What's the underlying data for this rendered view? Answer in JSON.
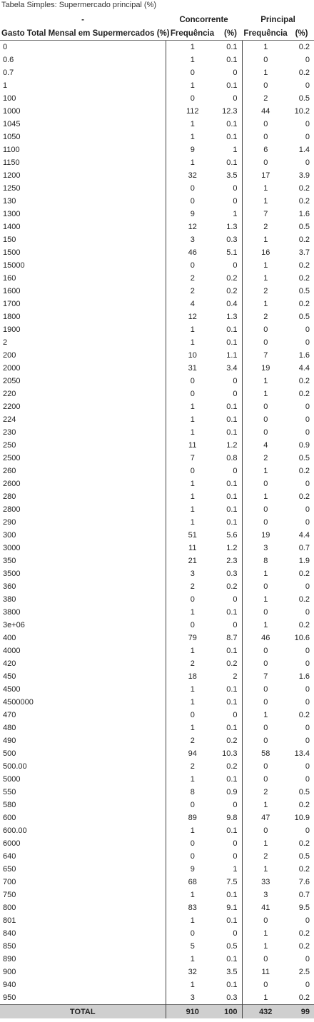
{
  "caption": "Tabela Simples: Supermercado principal (%)",
  "header": {
    "corner": "-",
    "group_concorrente": "Concorrente",
    "group_principal": "Principal",
    "row_label": "Gasto Total Mensal em Supermercados (%)",
    "freq1": "Frequência",
    "pct1": "(%)",
    "freq2": "Frequência",
    "pct2": "(%)"
  },
  "rows": [
    [
      "0",
      "1",
      "0.1",
      "1",
      "0.2"
    ],
    [
      "0.6",
      "1",
      "0.1",
      "0",
      "0"
    ],
    [
      "0.7",
      "0",
      "0",
      "1",
      "0.2"
    ],
    [
      "1",
      "1",
      "0.1",
      "0",
      "0"
    ],
    [
      "100",
      "0",
      "0",
      "2",
      "0.5"
    ],
    [
      "1000",
      "112",
      "12.3",
      "44",
      "10.2"
    ],
    [
      "1045",
      "1",
      "0.1",
      "0",
      "0"
    ],
    [
      "1050",
      "1",
      "0.1",
      "0",
      "0"
    ],
    [
      "1100",
      "9",
      "1",
      "6",
      "1.4"
    ],
    [
      "1150",
      "1",
      "0.1",
      "0",
      "0"
    ],
    [
      "1200",
      "32",
      "3.5",
      "17",
      "3.9"
    ],
    [
      "1250",
      "0",
      "0",
      "1",
      "0.2"
    ],
    [
      "130",
      "0",
      "0",
      "1",
      "0.2"
    ],
    [
      "1300",
      "9",
      "1",
      "7",
      "1.6"
    ],
    [
      "1400",
      "12",
      "1.3",
      "2",
      "0.5"
    ],
    [
      "150",
      "3",
      "0.3",
      "1",
      "0.2"
    ],
    [
      "1500",
      "46",
      "5.1",
      "16",
      "3.7"
    ],
    [
      "15000",
      "0",
      "0",
      "1",
      "0.2"
    ],
    [
      "160",
      "2",
      "0.2",
      "1",
      "0.2"
    ],
    [
      "1600",
      "2",
      "0.2",
      "2",
      "0.5"
    ],
    [
      "1700",
      "4",
      "0.4",
      "1",
      "0.2"
    ],
    [
      "1800",
      "12",
      "1.3",
      "2",
      "0.5"
    ],
    [
      "1900",
      "1",
      "0.1",
      "0",
      "0"
    ],
    [
      "2",
      "1",
      "0.1",
      "0",
      "0"
    ],
    [
      "200",
      "10",
      "1.1",
      "7",
      "1.6"
    ],
    [
      "2000",
      "31",
      "3.4",
      "19",
      "4.4"
    ],
    [
      "2050",
      "0",
      "0",
      "1",
      "0.2"
    ],
    [
      "220",
      "0",
      "0",
      "1",
      "0.2"
    ],
    [
      "2200",
      "1",
      "0.1",
      "0",
      "0"
    ],
    [
      "224",
      "1",
      "0.1",
      "0",
      "0"
    ],
    [
      "230",
      "1",
      "0.1",
      "0",
      "0"
    ],
    [
      "250",
      "11",
      "1.2",
      "4",
      "0.9"
    ],
    [
      "2500",
      "7",
      "0.8",
      "2",
      "0.5"
    ],
    [
      "260",
      "0",
      "0",
      "1",
      "0.2"
    ],
    [
      "2600",
      "1",
      "0.1",
      "0",
      "0"
    ],
    [
      "280",
      "1",
      "0.1",
      "1",
      "0.2"
    ],
    [
      "2800",
      "1",
      "0.1",
      "0",
      "0"
    ],
    [
      "290",
      "1",
      "0.1",
      "0",
      "0"
    ],
    [
      "300",
      "51",
      "5.6",
      "19",
      "4.4"
    ],
    [
      "3000",
      "11",
      "1.2",
      "3",
      "0.7"
    ],
    [
      "350",
      "21",
      "2.3",
      "8",
      "1.9"
    ],
    [
      "3500",
      "3",
      "0.3",
      "1",
      "0.2"
    ],
    [
      "360",
      "2",
      "0.2",
      "0",
      "0"
    ],
    [
      "380",
      "0",
      "0",
      "1",
      "0.2"
    ],
    [
      "3800",
      "1",
      "0.1",
      "0",
      "0"
    ],
    [
      "3e+06",
      "0",
      "0",
      "1",
      "0.2"
    ],
    [
      "400",
      "79",
      "8.7",
      "46",
      "10.6"
    ],
    [
      "4000",
      "1",
      "0.1",
      "0",
      "0"
    ],
    [
      "420",
      "2",
      "0.2",
      "0",
      "0"
    ],
    [
      "450",
      "18",
      "2",
      "7",
      "1.6"
    ],
    [
      "4500",
      "1",
      "0.1",
      "0",
      "0"
    ],
    [
      "4500000",
      "1",
      "0.1",
      "0",
      "0"
    ],
    [
      "470",
      "0",
      "0",
      "1",
      "0.2"
    ],
    [
      "480",
      "1",
      "0.1",
      "0",
      "0"
    ],
    [
      "490",
      "2",
      "0.2",
      "0",
      "0"
    ],
    [
      "500",
      "94",
      "10.3",
      "58",
      "13.4"
    ],
    [
      "500.00",
      "2",
      "0.2",
      "0",
      "0"
    ],
    [
      "5000",
      "1",
      "0.1",
      "0",
      "0"
    ],
    [
      "550",
      "8",
      "0.9",
      "2",
      "0.5"
    ],
    [
      "580",
      "0",
      "0",
      "1",
      "0.2"
    ],
    [
      "600",
      "89",
      "9.8",
      "47",
      "10.9"
    ],
    [
      "600.00",
      "1",
      "0.1",
      "0",
      "0"
    ],
    [
      "6000",
      "0",
      "0",
      "1",
      "0.2"
    ],
    [
      "640",
      "0",
      "0",
      "2",
      "0.5"
    ],
    [
      "650",
      "9",
      "1",
      "1",
      "0.2"
    ],
    [
      "700",
      "68",
      "7.5",
      "33",
      "7.6"
    ],
    [
      "750",
      "1",
      "0.1",
      "3",
      "0.7"
    ],
    [
      "800",
      "83",
      "9.1",
      "41",
      "9.5"
    ],
    [
      "801",
      "1",
      "0.1",
      "0",
      "0"
    ],
    [
      "840",
      "0",
      "0",
      "1",
      "0.2"
    ],
    [
      "850",
      "5",
      "0.5",
      "1",
      "0.2"
    ],
    [
      "890",
      "1",
      "0.1",
      "0",
      "0"
    ],
    [
      "900",
      "32",
      "3.5",
      "11",
      "2.5"
    ],
    [
      "940",
      "1",
      "0.1",
      "0",
      "0"
    ],
    [
      "950",
      "3",
      "0.3",
      "1",
      "0.2"
    ]
  ],
  "total": [
    "TOTAL",
    "910",
    "100",
    "432",
    "99"
  ]
}
